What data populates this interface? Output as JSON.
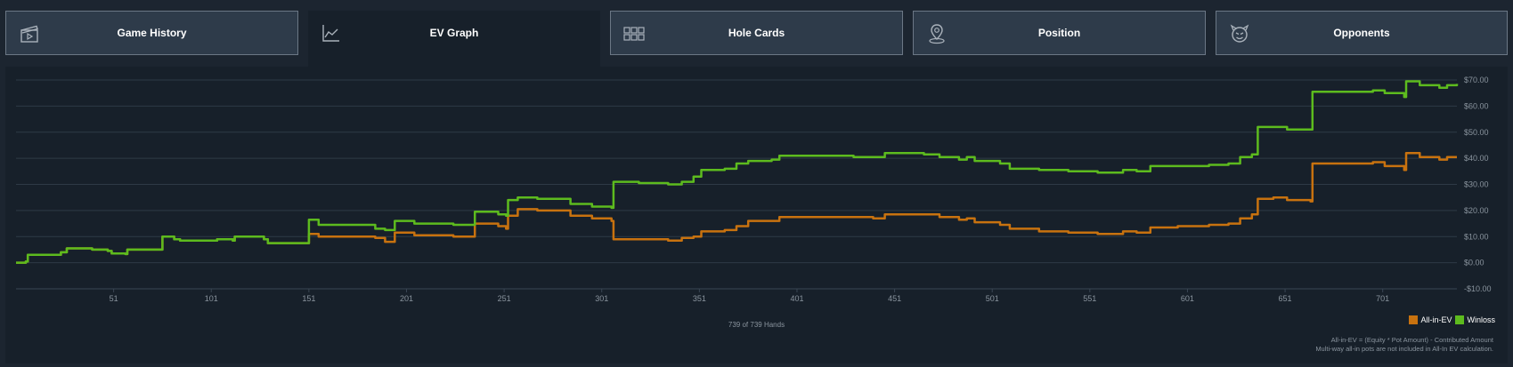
{
  "tabs": [
    {
      "id": "game-history",
      "label": "Game History",
      "icon": "clapperboard-icon",
      "active": false
    },
    {
      "id": "ev-graph",
      "label": "EV Graph",
      "icon": "line-chart-icon",
      "active": true
    },
    {
      "id": "hole-cards",
      "label": "Hole Cards",
      "icon": "grid-icon",
      "active": false
    },
    {
      "id": "position",
      "label": "Position",
      "icon": "location-pin-icon",
      "active": false
    },
    {
      "id": "opponents",
      "label": "Opponents",
      "icon": "devil-face-icon",
      "active": false
    }
  ],
  "colors": {
    "allin": "#c8720f",
    "winloss": "#5dbb1e",
    "grid": "#2e3a46",
    "axis_text": "#8a949e"
  },
  "hands_caption": "739 of 739 Hands",
  "notes": [
    "All-in-EV = (Equity * Pot Amount) - Contributed Amount",
    "Multi-way all-in pots are not included in All-In EV calculation."
  ],
  "chart_data": {
    "type": "line",
    "x_ticks": [
      51,
      101,
      151,
      201,
      251,
      301,
      351,
      401,
      451,
      501,
      551,
      601,
      651,
      701
    ],
    "y_ticks": [
      -10,
      0,
      10,
      20,
      30,
      40,
      50,
      60,
      70
    ],
    "y_tick_labels": [
      "-$10.00",
      "$0.00",
      "$10.00",
      "$20.00",
      "$30.00",
      "$40.00",
      "$50.00",
      "$60.00",
      "$70.00"
    ],
    "xlim": [
      1,
      739
    ],
    "ylim": [
      -10,
      70
    ],
    "legend_position": "bottom-right",
    "series": [
      {
        "name": "All-in-EV",
        "color_key": "allin",
        "points": [
          [
            1,
            0
          ],
          [
            6,
            0.5
          ],
          [
            7,
            3
          ],
          [
            20,
            3
          ],
          [
            24,
            4
          ],
          [
            27,
            5.5
          ],
          [
            40,
            5
          ],
          [
            48,
            4.5
          ],
          [
            50,
            3.5
          ],
          [
            57,
            3.3
          ],
          [
            58,
            5
          ],
          [
            74,
            5
          ],
          [
            76,
            10
          ],
          [
            82,
            9
          ],
          [
            85,
            8.5
          ],
          [
            100,
            8.5
          ],
          [
            104,
            9
          ],
          [
            112,
            8.5
          ],
          [
            113,
            10
          ],
          [
            128,
            9
          ],
          [
            130,
            7.5
          ],
          [
            150,
            7.5
          ],
          [
            151,
            11
          ],
          [
            156,
            10
          ],
          [
            180,
            10
          ],
          [
            185,
            9.5
          ],
          [
            190,
            8
          ],
          [
            194,
            8
          ],
          [
            195,
            11.5
          ],
          [
            205,
            10.5
          ],
          [
            215,
            10.5
          ],
          [
            225,
            10
          ],
          [
            230,
            10
          ],
          [
            235,
            10
          ],
          [
            236,
            15
          ],
          [
            248,
            14
          ],
          [
            252,
            13
          ],
          [
            253,
            18
          ],
          [
            258,
            20.5
          ],
          [
            268,
            20
          ],
          [
            282,
            20
          ],
          [
            285,
            18
          ],
          [
            296,
            17
          ],
          [
            306,
            16
          ],
          [
            307,
            9
          ],
          [
            320,
            9
          ],
          [
            335,
            8.5
          ],
          [
            342,
            9.5
          ],
          [
            348,
            10
          ],
          [
            352,
            12
          ],
          [
            364,
            12.5
          ],
          [
            370,
            14
          ],
          [
            376,
            16
          ],
          [
            388,
            16
          ],
          [
            392,
            17.5
          ],
          [
            410,
            17.5
          ],
          [
            430,
            17.5
          ],
          [
            440,
            17
          ],
          [
            446,
            18.5
          ],
          [
            466,
            18.5
          ],
          [
            474,
            17.5
          ],
          [
            484,
            16.5
          ],
          [
            488,
            17
          ],
          [
            492,
            15.5
          ],
          [
            505,
            14.5
          ],
          [
            510,
            13
          ],
          [
            525,
            12
          ],
          [
            540,
            11.5
          ],
          [
            555,
            11
          ],
          [
            568,
            12
          ],
          [
            575,
            11.5
          ],
          [
            582,
            13.5
          ],
          [
            596,
            14
          ],
          [
            612,
            14.5
          ],
          [
            622,
            15
          ],
          [
            628,
            17
          ],
          [
            634,
            18.5
          ],
          [
            637,
            24.5
          ],
          [
            645,
            25
          ],
          [
            652,
            24
          ],
          [
            664,
            23.5
          ],
          [
            665,
            38
          ],
          [
            690,
            38
          ],
          [
            696,
            38.5
          ],
          [
            702,
            37
          ],
          [
            712,
            35.5
          ],
          [
            713,
            42
          ],
          [
            720,
            40.5
          ],
          [
            730,
            39.5
          ],
          [
            734,
            40.5
          ],
          [
            739,
            40.5
          ]
        ]
      },
      {
        "name": "Winloss",
        "color_key": "winloss",
        "points": [
          [
            1,
            0
          ],
          [
            6,
            0.5
          ],
          [
            7,
            3
          ],
          [
            20,
            3
          ],
          [
            24,
            4
          ],
          [
            27,
            5.5
          ],
          [
            40,
            5
          ],
          [
            48,
            4.5
          ],
          [
            50,
            3.5
          ],
          [
            57,
            3.3
          ],
          [
            58,
            5
          ],
          [
            74,
            5
          ],
          [
            76,
            10
          ],
          [
            82,
            9
          ],
          [
            85,
            8.5
          ],
          [
            100,
            8.5
          ],
          [
            104,
            9
          ],
          [
            112,
            8.5
          ],
          [
            113,
            10
          ],
          [
            128,
            9
          ],
          [
            130,
            7.5
          ],
          [
            150,
            7.5
          ],
          [
            151,
            16.5
          ],
          [
            156,
            14.5
          ],
          [
            180,
            14.5
          ],
          [
            185,
            13
          ],
          [
            190,
            12.5
          ],
          [
            194,
            12.5
          ],
          [
            195,
            16
          ],
          [
            205,
            15
          ],
          [
            215,
            15
          ],
          [
            225,
            14.5
          ],
          [
            230,
            14.5
          ],
          [
            235,
            14.5
          ],
          [
            236,
            19.5
          ],
          [
            248,
            18.5
          ],
          [
            252,
            18
          ],
          [
            253,
            24
          ],
          [
            258,
            25
          ],
          [
            268,
            24.5
          ],
          [
            282,
            24.5
          ],
          [
            285,
            22.5
          ],
          [
            296,
            21.5
          ],
          [
            306,
            21
          ],
          [
            307,
            31
          ],
          [
            320,
            30.5
          ],
          [
            335,
            30
          ],
          [
            342,
            31
          ],
          [
            348,
            33
          ],
          [
            352,
            35.5
          ],
          [
            364,
            36
          ],
          [
            370,
            38
          ],
          [
            376,
            39
          ],
          [
            388,
            39.5
          ],
          [
            392,
            41
          ],
          [
            410,
            41
          ],
          [
            430,
            40.5
          ],
          [
            440,
            40.5
          ],
          [
            446,
            42
          ],
          [
            466,
            41.5
          ],
          [
            474,
            40.5
          ],
          [
            484,
            39.5
          ],
          [
            488,
            40.5
          ],
          [
            492,
            39
          ],
          [
            505,
            38
          ],
          [
            510,
            36
          ],
          [
            525,
            35.5
          ],
          [
            540,
            35
          ],
          [
            555,
            34.5
          ],
          [
            568,
            35.5
          ],
          [
            575,
            35
          ],
          [
            582,
            37
          ],
          [
            596,
            37
          ],
          [
            612,
            37.5
          ],
          [
            622,
            38
          ],
          [
            628,
            40.5
          ],
          [
            634,
            41.5
          ],
          [
            637,
            52
          ],
          [
            645,
            52
          ],
          [
            652,
            51
          ],
          [
            664,
            51
          ],
          [
            665,
            65.5
          ],
          [
            690,
            65.5
          ],
          [
            696,
            66
          ],
          [
            702,
            65
          ],
          [
            712,
            63.5
          ],
          [
            713,
            69.5
          ],
          [
            720,
            68
          ],
          [
            730,
            67
          ],
          [
            734,
            68
          ],
          [
            739,
            68.5
          ]
        ]
      }
    ]
  }
}
